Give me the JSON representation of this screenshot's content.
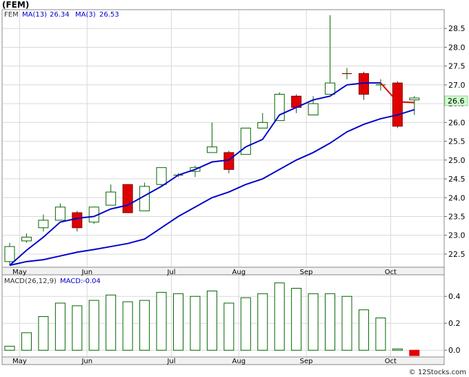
{
  "header": {
    "title": "(FEM)",
    "credit": "© 12Stocks.com"
  },
  "colors": {
    "up_candle": "#006400",
    "down_candle": "#e00000",
    "ma": "#0000cc",
    "macd_bar": "#006400",
    "macd_neg_bar": "#e00000",
    "last_price_box": "#ccffcc",
    "grid": "#d8d8d8"
  },
  "chart_data": [
    {
      "type": "candlestick",
      "legend": {
        "symbol": "FEM",
        "ma13_label": "MA(13)",
        "ma13_value": "26.34",
        "ma3_label": "MA(3)",
        "ma3_value": "26.53"
      },
      "last_price_label": "26.6",
      "ylim": [
        22.15,
        29.0
      ],
      "yticks": [
        22.5,
        23.0,
        23.5,
        24.0,
        24.5,
        25.0,
        25.5,
        26.0,
        26.5,
        27.0,
        27.5,
        28.0,
        28.5
      ],
      "ytick_labels": [
        "22.5",
        "23.0",
        "23.5",
        "24.0",
        "24.5",
        "25.0",
        "25.5",
        "26.0",
        "26.5",
        "27.0",
        "27.5",
        "28.0",
        "28.5"
      ],
      "xtick_labels": [
        "May",
        "Jun",
        "Jul",
        "Aug",
        "Sep",
        "Oct"
      ],
      "xtick_index": [
        1,
        5,
        10,
        14,
        18,
        23
      ],
      "candles": [
        {
          "o": 22.3,
          "h": 22.8,
          "l": 22.2,
          "c": 22.7
        },
        {
          "o": 22.85,
          "h": 23.05,
          "l": 22.8,
          "c": 22.95
        },
        {
          "o": 23.2,
          "h": 23.55,
          "l": 23.1,
          "c": 23.4
        },
        {
          "o": 23.4,
          "h": 23.85,
          "l": 23.4,
          "c": 23.75
        },
        {
          "o": 23.6,
          "h": 23.65,
          "l": 23.1,
          "c": 23.2
        },
        {
          "o": 23.35,
          "h": 23.75,
          "l": 23.3,
          "c": 23.75
        },
        {
          "o": 23.8,
          "h": 24.35,
          "l": 23.8,
          "c": 24.15
        },
        {
          "o": 24.35,
          "h": 24.35,
          "l": 23.6,
          "c": 23.6
        },
        {
          "o": 23.65,
          "h": 24.4,
          "l": 23.65,
          "c": 24.3
        },
        {
          "o": 24.35,
          "h": 24.8,
          "l": 24.3,
          "c": 24.8
        },
        {
          "o": 24.6,
          "h": 24.65,
          "l": 24.55,
          "c": 24.6
        },
        {
          "o": 24.7,
          "h": 24.85,
          "l": 24.55,
          "c": 24.8
        },
        {
          "o": 25.2,
          "h": 26.0,
          "l": 25.2,
          "c": 25.35
        },
        {
          "o": 25.2,
          "h": 25.25,
          "l": 24.65,
          "c": 24.75
        },
        {
          "o": 25.15,
          "h": 25.85,
          "l": 25.15,
          "c": 25.85
        },
        {
          "o": 25.85,
          "h": 26.25,
          "l": 25.85,
          "c": 26.0
        },
        {
          "o": 26.05,
          "h": 26.8,
          "l": 26.05,
          "c": 26.75
        },
        {
          "o": 26.7,
          "h": 26.75,
          "l": 26.25,
          "c": 26.4
        },
        {
          "o": 26.2,
          "h": 26.7,
          "l": 26.2,
          "c": 26.5
        },
        {
          "o": 26.75,
          "h": 28.85,
          "l": 26.75,
          "c": 27.05
        },
        {
          "o": 27.3,
          "h": 27.45,
          "l": 27.15,
          "c": 27.3
        },
        {
          "o": 27.3,
          "h": 27.35,
          "l": 26.6,
          "c": 26.75
        },
        {
          "o": 27.0,
          "h": 27.15,
          "l": 26.85,
          "c": 27.0
        },
        {
          "o": 27.05,
          "h": 27.1,
          "l": 25.85,
          "c": 25.9
        },
        {
          "o": 26.6,
          "h": 26.7,
          "l": 26.2,
          "c": 26.65
        }
      ],
      "ma3": [
        22.2,
        22.6,
        22.95,
        23.35,
        23.45,
        23.5,
        23.7,
        23.8,
        24.05,
        24.3,
        24.6,
        24.75,
        24.95,
        25.0,
        25.35,
        25.55,
        26.2,
        26.4,
        26.6,
        26.7,
        27.0,
        27.05,
        27.05,
        26.55,
        26.53
      ],
      "ma13": [
        22.2,
        22.3,
        22.35,
        22.45,
        22.55,
        22.62,
        22.7,
        22.78,
        22.9,
        23.2,
        23.5,
        23.75,
        24.0,
        24.15,
        24.35,
        24.5,
        24.75,
        25.0,
        25.2,
        25.45,
        25.75,
        25.95,
        26.1,
        26.2,
        26.34
      ]
    },
    {
      "type": "bar",
      "legend": {
        "label": "MACD(26,12,9)",
        "value_label": "MACD:",
        "value": "-0.04"
      },
      "ylim": [
        -0.05,
        0.56
      ],
      "yticks": [
        0.0,
        0.2,
        0.4
      ],
      "ytick_labels": [
        "0.0",
        "0.2",
        "0.4"
      ],
      "xtick_labels": [
        "May",
        "Jun",
        "Jul",
        "Aug",
        "Sep",
        "Oct"
      ],
      "xtick_index": [
        1,
        5,
        10,
        14,
        18,
        23
      ],
      "values": [
        0.03,
        0.13,
        0.25,
        0.35,
        0.33,
        0.37,
        0.41,
        0.36,
        0.37,
        0.43,
        0.42,
        0.4,
        0.44,
        0.35,
        0.39,
        0.42,
        0.5,
        0.46,
        0.42,
        0.42,
        0.4,
        0.3,
        0.24,
        0.01,
        -0.04
      ]
    }
  ]
}
